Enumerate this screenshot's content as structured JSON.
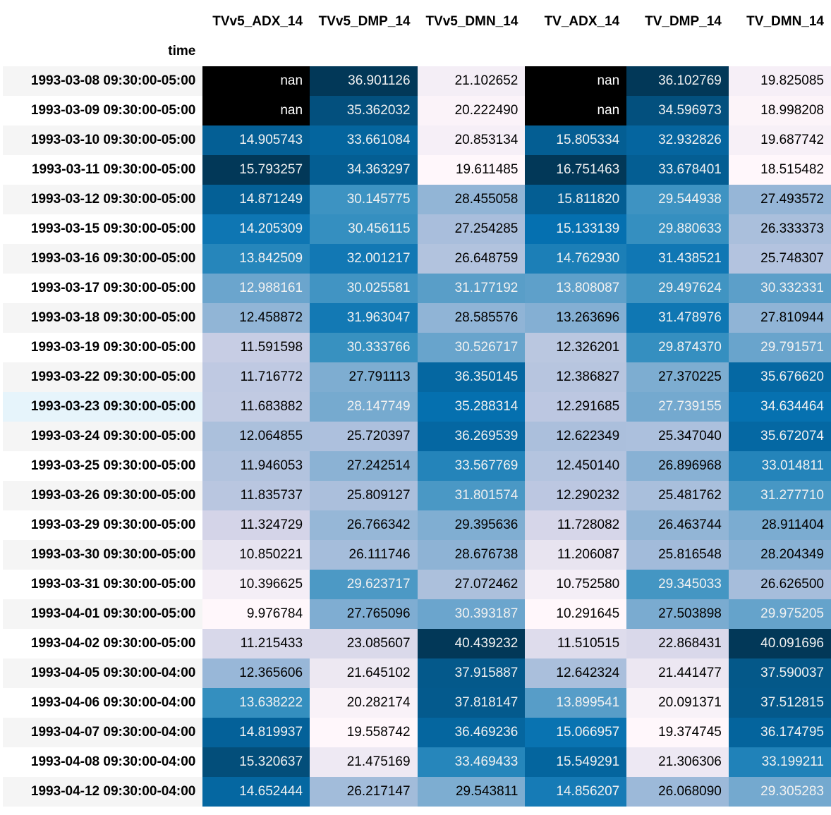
{
  "table": {
    "index_name": "time",
    "columns": [
      "TVv5_ADX_14",
      "TVv5_DMP_14",
      "TVv5_DMN_14",
      "TV_ADX_14",
      "TV_DMP_14",
      "TV_DMN_14"
    ],
    "rows": [
      {
        "index": "1993-03-08 09:30:00-05:00",
        "values": [
          "nan",
          "36.901126",
          "21.102652",
          "nan",
          "36.102769",
          "19.825085"
        ]
      },
      {
        "index": "1993-03-09 09:30:00-05:00",
        "values": [
          "nan",
          "35.362032",
          "20.222490",
          "nan",
          "34.596973",
          "18.998208"
        ]
      },
      {
        "index": "1993-03-10 09:30:00-05:00",
        "values": [
          "14.905743",
          "33.661084",
          "20.853134",
          "15.805334",
          "32.932826",
          "19.687742"
        ]
      },
      {
        "index": "1993-03-11 09:30:00-05:00",
        "values": [
          "15.793257",
          "34.363297",
          "19.611485",
          "16.751463",
          "33.678401",
          "18.515482"
        ]
      },
      {
        "index": "1993-03-12 09:30:00-05:00",
        "values": [
          "14.871249",
          "30.145775",
          "28.455058",
          "15.811820",
          "29.544938",
          "27.493572"
        ]
      },
      {
        "index": "1993-03-15 09:30:00-05:00",
        "values": [
          "14.205309",
          "30.456115",
          "27.254285",
          "15.133139",
          "29.880633",
          "26.333373"
        ]
      },
      {
        "index": "1993-03-16 09:30:00-05:00",
        "values": [
          "13.842509",
          "32.001217",
          "26.648759",
          "14.762930",
          "31.438521",
          "25.748307"
        ]
      },
      {
        "index": "1993-03-17 09:30:00-05:00",
        "values": [
          "12.988161",
          "30.025581",
          "31.177192",
          "13.808087",
          "29.497624",
          "30.332331"
        ]
      },
      {
        "index": "1993-03-18 09:30:00-05:00",
        "values": [
          "12.458872",
          "31.963047",
          "28.585576",
          "13.263696",
          "31.478976",
          "27.810944"
        ]
      },
      {
        "index": "1993-03-19 09:30:00-05:00",
        "values": [
          "11.591598",
          "30.333766",
          "30.526717",
          "12.326201",
          "29.874370",
          "29.791571"
        ]
      },
      {
        "index": "1993-03-22 09:30:00-05:00",
        "values": [
          "11.716772",
          "27.791113",
          "36.350145",
          "12.386827",
          "27.370225",
          "35.676620"
        ]
      },
      {
        "index": "1993-03-23 09:30:00-05:00",
        "values": [
          "11.683882",
          "28.147749",
          "35.288314",
          "12.291685",
          "27.739155",
          "34.634464"
        ]
      },
      {
        "index": "1993-03-24 09:30:00-05:00",
        "values": [
          "12.064855",
          "25.720397",
          "36.269539",
          "12.622349",
          "25.347040",
          "35.672074"
        ]
      },
      {
        "index": "1993-03-25 09:30:00-05:00",
        "values": [
          "11.946053",
          "27.242514",
          "33.567769",
          "12.450140",
          "26.896968",
          "33.014811"
        ]
      },
      {
        "index": "1993-03-26 09:30:00-05:00",
        "values": [
          "11.835737",
          "25.809127",
          "31.801574",
          "12.290232",
          "25.481762",
          "31.277710"
        ]
      },
      {
        "index": "1993-03-29 09:30:00-05:00",
        "values": [
          "11.324729",
          "26.766342",
          "29.395636",
          "11.728082",
          "26.463744",
          "28.911404"
        ]
      },
      {
        "index": "1993-03-30 09:30:00-05:00",
        "values": [
          "10.850221",
          "26.111746",
          "28.676738",
          "11.206087",
          "25.816548",
          "28.204349"
        ]
      },
      {
        "index": "1993-03-31 09:30:00-05:00",
        "values": [
          "10.396625",
          "29.623717",
          "27.072462",
          "10.752580",
          "29.345033",
          "26.626500"
        ]
      },
      {
        "index": "1993-04-01 09:30:00-05:00",
        "values": [
          "9.976784",
          "27.765096",
          "30.393187",
          "10.291645",
          "27.503898",
          "29.975205"
        ]
      },
      {
        "index": "1993-04-02 09:30:00-05:00",
        "values": [
          "11.215433",
          "23.085607",
          "40.439232",
          "11.510515",
          "22.868431",
          "40.091696"
        ]
      },
      {
        "index": "1993-04-05 09:30:00-04:00",
        "values": [
          "12.365606",
          "21.645102",
          "37.915887",
          "12.642324",
          "21.441477",
          "37.590037"
        ]
      },
      {
        "index": "1993-04-06 09:30:00-04:00",
        "values": [
          "13.638222",
          "20.282174",
          "37.818147",
          "13.899541",
          "20.091371",
          "37.512815"
        ]
      },
      {
        "index": "1993-04-07 09:30:00-04:00",
        "values": [
          "14.819937",
          "19.558742",
          "36.469236",
          "15.066957",
          "19.374745",
          "36.174795"
        ]
      },
      {
        "index": "1993-04-08 09:30:00-04:00",
        "values": [
          "15.320637",
          "21.475169",
          "33.469433",
          "15.549291",
          "21.306306",
          "33.199211"
        ]
      },
      {
        "index": "1993-04-12 09:30:00-04:00",
        "values": [
          "14.652444",
          "26.217147",
          "29.543811",
          "14.856207",
          "26.068090",
          "29.305283"
        ]
      }
    ],
    "highlighted_row": 11
  },
  "colors": {
    "nan_background": "#000000",
    "nan_text": "#ffffff",
    "gradient_low": "#fff7fb",
    "gradient_mid": "#a6bddb",
    "gradient_high": "#1a3a5f"
  }
}
